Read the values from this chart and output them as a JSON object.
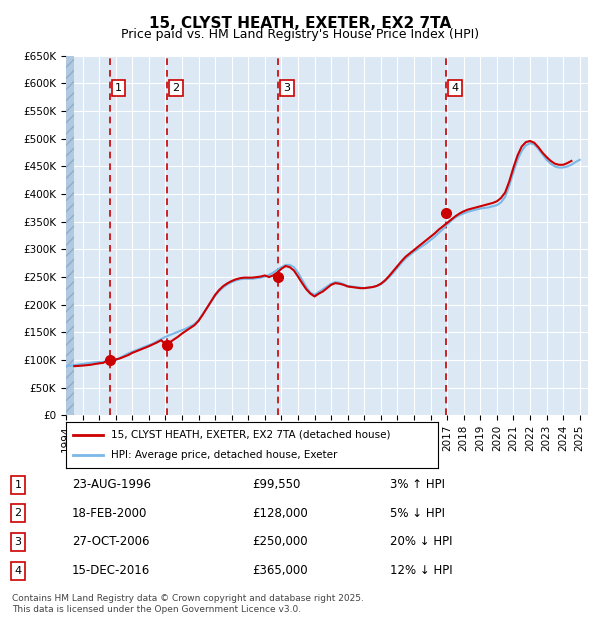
{
  "title": "15, CLYST HEATH, EXETER, EX2 7TA",
  "subtitle": "Price paid vs. HM Land Registry's House Price Index (HPI)",
  "ylabel": "",
  "xlabel": "",
  "ylim": [
    0,
    650000
  ],
  "yticks": [
    0,
    50000,
    100000,
    150000,
    200000,
    250000,
    300000,
    350000,
    400000,
    450000,
    500000,
    550000,
    600000,
    650000
  ],
  "ytick_labels": [
    "£0",
    "£50K",
    "£100K",
    "£150K",
    "£200K",
    "£250K",
    "£300K",
    "£350K",
    "£400K",
    "£450K",
    "£500K",
    "£550K",
    "£600K",
    "£650K"
  ],
  "xlim_start": 1994.0,
  "xlim_end": 2025.5,
  "background_color": "#ffffff",
  "plot_bg_color": "#dce9f5",
  "hatch_color": "#b0c8e0",
  "grid_color": "#ffffff",
  "red_line_color": "#cc0000",
  "blue_line_color": "#7ab8e8",
  "vline_color": "#cc0000",
  "marker_color": "#cc0000",
  "transactions": [
    {
      "num": 1,
      "date": "23-AUG-1996",
      "year": 1996.65,
      "price": 99550,
      "label": "23-AUG-1996",
      "price_str": "£99,550",
      "pct": "3% ↑ HPI"
    },
    {
      "num": 2,
      "date": "18-FEB-2000",
      "year": 2000.12,
      "price": 128000,
      "label": "18-FEB-2000",
      "price_str": "£128,000",
      "pct": "5% ↓ HPI"
    },
    {
      "num": 3,
      "date": "27-OCT-2006",
      "year": 2006.82,
      "price": 250000,
      "label": "27-OCT-2006",
      "price_str": "£250,000",
      "pct": "20% ↓ HPI"
    },
    {
      "num": 4,
      "date": "15-DEC-2016",
      "year": 2016.96,
      "price": 365000,
      "label": "15-DEC-2016",
      "price_str": "£365,000",
      "pct": "12% ↓ HPI"
    }
  ],
  "legend_line1": "15, CLYST HEATH, EXETER, EX2 7TA (detached house)",
  "legend_line2": "HPI: Average price, detached house, Exeter",
  "footer": "Contains HM Land Registry data © Crown copyright and database right 2025.\nThis data is licensed under the Open Government Licence v3.0.",
  "hpi_years": [
    1994.0,
    1994.25,
    1994.5,
    1994.75,
    1995.0,
    1995.25,
    1995.5,
    1995.75,
    1996.0,
    1996.25,
    1996.5,
    1996.75,
    1997.0,
    1997.25,
    1997.5,
    1997.75,
    1998.0,
    1998.25,
    1998.5,
    1998.75,
    1999.0,
    1999.25,
    1999.5,
    1999.75,
    2000.0,
    2000.25,
    2000.5,
    2000.75,
    2001.0,
    2001.25,
    2001.5,
    2001.75,
    2002.0,
    2002.25,
    2002.5,
    2002.75,
    2003.0,
    2003.25,
    2003.5,
    2003.75,
    2004.0,
    2004.25,
    2004.5,
    2004.75,
    2005.0,
    2005.25,
    2005.5,
    2005.75,
    2006.0,
    2006.25,
    2006.5,
    2006.75,
    2007.0,
    2007.25,
    2007.5,
    2007.75,
    2008.0,
    2008.25,
    2008.5,
    2008.75,
    2009.0,
    2009.25,
    2009.5,
    2009.75,
    2010.0,
    2010.25,
    2010.5,
    2010.75,
    2011.0,
    2011.25,
    2011.5,
    2011.75,
    2012.0,
    2012.25,
    2012.5,
    2012.75,
    2013.0,
    2013.25,
    2013.5,
    2013.75,
    2014.0,
    2014.25,
    2014.5,
    2014.75,
    2015.0,
    2015.25,
    2015.5,
    2015.75,
    2016.0,
    2016.25,
    2016.5,
    2016.75,
    2017.0,
    2017.25,
    2017.5,
    2017.75,
    2018.0,
    2018.25,
    2018.5,
    2018.75,
    2019.0,
    2019.25,
    2019.5,
    2019.75,
    2020.0,
    2020.25,
    2020.5,
    2020.75,
    2021.0,
    2021.25,
    2021.5,
    2021.75,
    2022.0,
    2022.25,
    2022.5,
    2022.75,
    2023.0,
    2023.25,
    2023.5,
    2023.75,
    2024.0,
    2024.25,
    2024.5,
    2024.75,
    2025.0
  ],
  "hpi_values": [
    89000,
    90000,
    91000,
    92000,
    93000,
    94000,
    95000,
    96000,
    96500,
    97000,
    97500,
    98000,
    100000,
    104000,
    108000,
    112000,
    115000,
    118000,
    121000,
    124000,
    127000,
    130000,
    134000,
    138000,
    142000,
    145000,
    148000,
    151000,
    154000,
    157000,
    161000,
    165000,
    172000,
    183000,
    194000,
    205000,
    216000,
    225000,
    232000,
    237000,
    241000,
    244000,
    246000,
    247000,
    247000,
    247000,
    248000,
    249000,
    251000,
    254000,
    258000,
    263000,
    268000,
    272000,
    272000,
    268000,
    258000,
    245000,
    232000,
    222000,
    218000,
    223000,
    228000,
    233000,
    238000,
    241000,
    240000,
    237000,
    234000,
    233000,
    232000,
    231000,
    230000,
    231000,
    232000,
    234000,
    237000,
    243000,
    250000,
    258000,
    267000,
    276000,
    284000,
    290000,
    296000,
    301000,
    306000,
    311000,
    317000,
    323000,
    330000,
    337000,
    345000,
    352000,
    358000,
    362000,
    365000,
    368000,
    370000,
    372000,
    374000,
    375000,
    376000,
    378000,
    380000,
    385000,
    395000,
    415000,
    440000,
    462000,
    478000,
    488000,
    492000,
    490000,
    482000,
    472000,
    462000,
    455000,
    450000,
    448000,
    448000,
    450000,
    453000,
    458000,
    462000
  ],
  "price_years": [
    1994.5,
    1995.0,
    1995.5,
    1995.75,
    1996.0,
    1996.25,
    1996.5,
    1996.75,
    1997.0,
    1997.25,
    1997.5,
    1997.75,
    1998.0,
    1998.25,
    1998.5,
    1998.75,
    1999.0,
    1999.25,
    1999.5,
    1999.75,
    2000.0,
    2000.25,
    2000.5,
    2000.75,
    2001.0,
    2001.25,
    2001.5,
    2001.75,
    2002.0,
    2002.25,
    2002.5,
    2002.75,
    2003.0,
    2003.25,
    2003.5,
    2003.75,
    2004.0,
    2004.25,
    2004.5,
    2004.75,
    2005.0,
    2005.25,
    2005.5,
    2005.75,
    2006.0,
    2006.25,
    2006.5,
    2006.75,
    2007.0,
    2007.25,
    2007.5,
    2007.75,
    2008.0,
    2008.25,
    2008.5,
    2008.75,
    2009.0,
    2009.25,
    2009.5,
    2009.75,
    2010.0,
    2010.25,
    2010.5,
    2010.75,
    2011.0,
    2011.25,
    2011.5,
    2011.75,
    2012.0,
    2012.25,
    2012.5,
    2012.75,
    2013.0,
    2013.25,
    2013.5,
    2013.75,
    2014.0,
    2014.25,
    2014.5,
    2014.75,
    2015.0,
    2015.25,
    2015.5,
    2015.75,
    2016.0,
    2016.25,
    2016.5,
    2016.75,
    2017.0,
    2017.25,
    2017.5,
    2017.75,
    2018.0,
    2018.25,
    2018.5,
    2018.75,
    2019.0,
    2019.25,
    2019.5,
    2019.75,
    2020.0,
    2020.25,
    2020.5,
    2020.75,
    2021.0,
    2021.25,
    2021.5,
    2021.75,
    2022.0,
    2022.25,
    2022.5,
    2022.75,
    2023.0,
    2023.25,
    2023.5,
    2023.75,
    2024.0,
    2024.25,
    2024.5
  ],
  "price_values": [
    89000,
    90000,
    91500,
    93000,
    94000,
    95000,
    99550,
    100000,
    101000,
    103000,
    106000,
    109000,
    113000,
    116000,
    119000,
    122000,
    125000,
    128500,
    132000,
    136000,
    128000,
    132000,
    137000,
    142000,
    148000,
    153000,
    158000,
    163000,
    171000,
    182000,
    194000,
    206000,
    218000,
    227000,
    234000,
    239000,
    243000,
    246000,
    248000,
    249000,
    249000,
    249000,
    250000,
    251000,
    253000,
    250000,
    253000,
    258000,
    265000,
    270000,
    268000,
    262000,
    251000,
    239000,
    228000,
    220000,
    215000,
    220000,
    224000,
    230000,
    236000,
    239000,
    238000,
    236000,
    233000,
    232000,
    231000,
    230000,
    230000,
    231000,
    232000,
    234000,
    238000,
    244000,
    252000,
    261000,
    270000,
    279000,
    287000,
    293000,
    299000,
    305000,
    311000,
    317000,
    323000,
    329000,
    336000,
    342000,
    348000,
    354000,
    360000,
    365000,
    369000,
    372000,
    374000,
    376000,
    378000,
    380000,
    382000,
    384000,
    387000,
    393000,
    403000,
    423000,
    448000,
    470000,
    486000,
    494000,
    496000,
    493000,
    485000,
    475000,
    467000,
    460000,
    455000,
    453000,
    453000,
    456000,
    460000
  ]
}
